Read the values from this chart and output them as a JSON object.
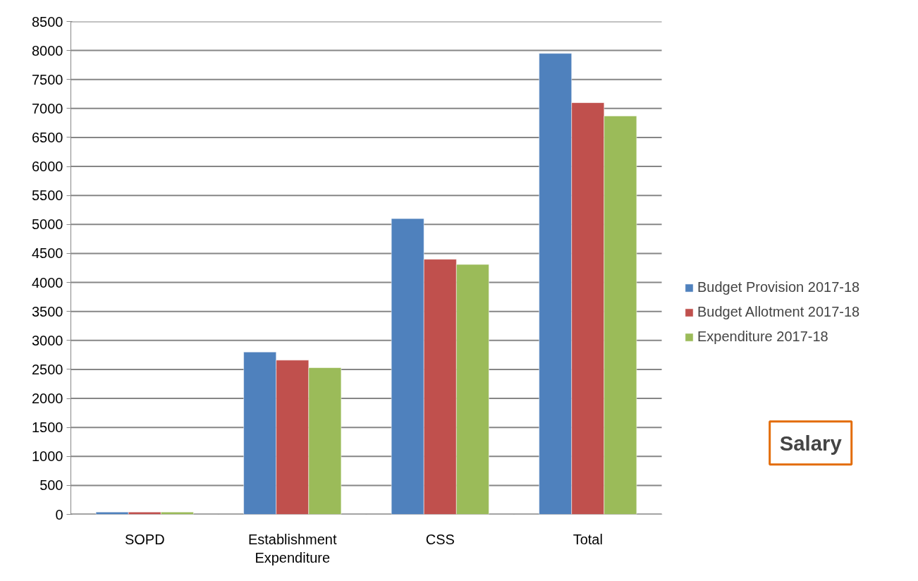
{
  "chart_data": {
    "type": "bar",
    "categories": [
      "SOPD",
      "Establishment Expenditure",
      "CSS",
      "Total"
    ],
    "series": [
      {
        "name": "Budget Provision 2017-18",
        "color": "#4f81bd",
        "values": [
          40,
          2800,
          5100,
          7950
        ]
      },
      {
        "name": "Budget Allotment 2017-18",
        "color": "#c0504d",
        "values": [
          40,
          2660,
          4400,
          7100
        ]
      },
      {
        "name": "Expenditure 2017-18",
        "color": "#9bbb59",
        "values": [
          40,
          2530,
          4310,
          6870
        ]
      }
    ],
    "ylim": [
      0,
      8500
    ],
    "yticks": [
      0,
      500,
      1000,
      1500,
      2000,
      2500,
      3000,
      3500,
      4000,
      4500,
      5000,
      5500,
      6000,
      6500,
      7000,
      7500,
      8000,
      8500
    ],
    "grid": "y",
    "legend": "right",
    "annotations": [
      "Salary"
    ]
  }
}
